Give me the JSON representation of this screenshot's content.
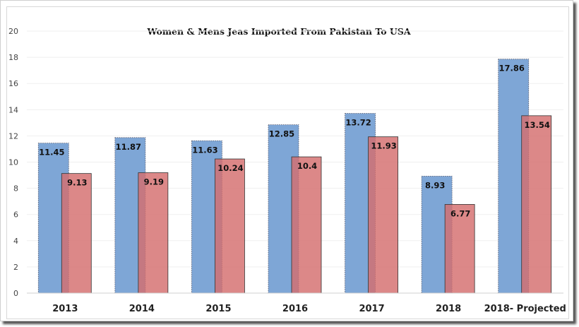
{
  "chart_data": {
    "type": "bar",
    "title": "Women & Mens Jeas Imported From Pakistan To USA",
    "xlabel": "",
    "ylabel": "",
    "ylim": [
      0,
      20
    ],
    "yticks": [
      0,
      2,
      4,
      6,
      8,
      10,
      12,
      14,
      16,
      18,
      20
    ],
    "grid": true,
    "categories": [
      "2013",
      "2014",
      "2015",
      "2016",
      "2017",
      "2018",
      "2018- Projected"
    ],
    "series": [
      {
        "name": "Series 1",
        "color": "#7ea6d6",
        "values": [
          11.45,
          11.87,
          11.63,
          12.85,
          13.72,
          8.93,
          17.86
        ]
      },
      {
        "name": "Series 2",
        "color": "#d46e6e",
        "values": [
          9.13,
          9.19,
          10.24,
          10.4,
          11.93,
          6.77,
          13.54
        ]
      }
    ]
  }
}
